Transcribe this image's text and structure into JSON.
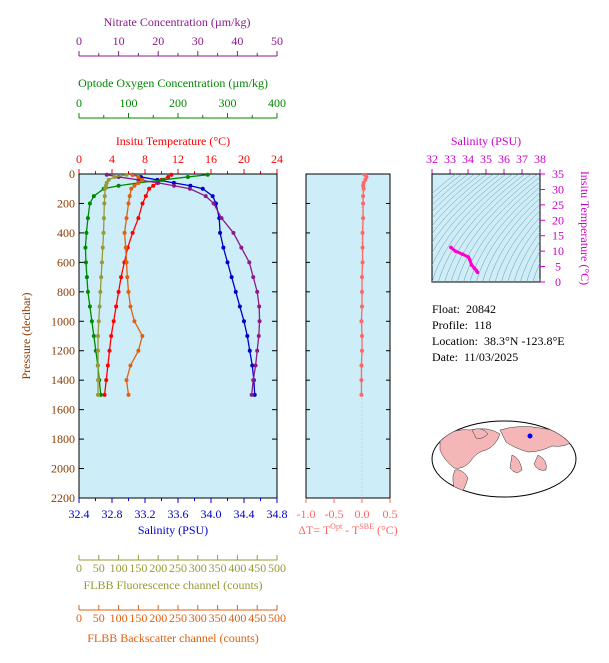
{
  "float_info": {
    "float_label": "Float:",
    "float_id": "20842",
    "profile_label": "Profile:",
    "profile": "118",
    "location_label": "Location:",
    "location": "38.3°N  -123.8°E",
    "date_label": "Date:",
    "date": "11/03/2025"
  },
  "colors": {
    "plot_bg": "#cdeef8",
    "temperature": "#ff0000",
    "salinity": "#0000cc",
    "oxygen": "#008800",
    "nitrate": "#8b1a8b",
    "fluorescence": "#999933",
    "backscatter": "#e06010",
    "delta_t": "#ff6666",
    "ts_axis": "#cc00cc",
    "ts_line": "#ff00cc"
  },
  "chart_data": [
    {
      "type": "line",
      "id": "main-profile",
      "ylabel": "Pressure (decibar)",
      "ylim": [
        2200,
        0
      ],
      "yticks": [
        0,
        200,
        400,
        600,
        800,
        1000,
        1200,
        1400,
        1600,
        1800,
        2000,
        2200
      ],
      "grid": false,
      "axes": {
        "nitrate": {
          "label": "Nitrate Concentration (µm/kg)",
          "lim": [
            0,
            50
          ],
          "ticks": [
            0,
            10,
            20,
            30,
            40,
            50
          ]
        },
        "oxygen": {
          "label": "Optode Oxygen Concentration (µm/kg)",
          "lim": [
            0,
            400
          ],
          "ticks": [
            0,
            100,
            200,
            300,
            400
          ]
        },
        "temperature": {
          "label": "Insitu Temperature (°C)",
          "lim": [
            0,
            24
          ],
          "ticks": [
            0,
            4,
            8,
            12,
            16,
            20,
            24
          ]
        },
        "salinity": {
          "label": "Salinity (PSU)",
          "lim": [
            32.4,
            34.8
          ],
          "ticks": [
            "32.4",
            "32.8",
            "33.2",
            "33.6",
            "34.0",
            "34.4",
            "34.8"
          ]
        },
        "fluorescence": {
          "label": "FLBB Fluorescence channel (counts)",
          "lim": [
            0,
            500
          ],
          "ticks": [
            0,
            50,
            100,
            150,
            200,
            250,
            300,
            350,
            400,
            450,
            500
          ]
        },
        "backscatter": {
          "label": "FLBB Backscatter channel (counts)",
          "lim": [
            0,
            500
          ],
          "ticks": [
            0,
            50,
            100,
            150,
            200,
            250,
            300,
            350,
            400,
            450,
            500
          ]
        }
      },
      "series": [
        {
          "key": "temperature",
          "pressure": [
            5,
            20,
            40,
            60,
            80,
            100,
            150,
            200,
            300,
            400,
            500,
            600,
            700,
            800,
            900,
            1000,
            1100,
            1200,
            1300,
            1400,
            1500
          ],
          "values": [
            11.2,
            10.8,
            10.0,
            9.5,
            9.0,
            8.5,
            8.1,
            7.7,
            7.2,
            6.5,
            5.9,
            5.5,
            5.1,
            4.8,
            4.5,
            4.2,
            3.9,
            3.7,
            3.5,
            3.3,
            3.1
          ]
        },
        {
          "key": "salinity",
          "pressure": [
            5,
            20,
            40,
            60,
            80,
            100,
            150,
            200,
            300,
            400,
            500,
            600,
            700,
            800,
            900,
            1000,
            1100,
            1200,
            1300,
            1400,
            1500
          ],
          "values": [
            33.05,
            33.15,
            33.35,
            33.55,
            33.75,
            33.9,
            34.02,
            34.06,
            34.1,
            34.11,
            34.15,
            34.2,
            34.25,
            34.3,
            34.35,
            34.4,
            34.44,
            34.47,
            34.5,
            34.52,
            34.53
          ]
        },
        {
          "key": "oxygen",
          "pressure": [
            5,
            20,
            40,
            60,
            80,
            100,
            150,
            200,
            300,
            400,
            500,
            600,
            700,
            800,
            900,
            1000,
            1100,
            1200,
            1300,
            1400,
            1500
          ],
          "values": [
            260,
            220,
            170,
            120,
            80,
            50,
            30,
            22,
            18,
            15,
            13,
            14,
            16,
            18,
            22,
            26,
            30,
            34,
            38,
            41,
            44
          ]
        },
        {
          "key": "nitrate",
          "pressure": [
            5,
            20,
            40,
            60,
            80,
            100,
            150,
            200,
            300,
            400,
            500,
            600,
            700,
            800,
            900,
            1000,
            1100,
            1200,
            1300,
            1400,
            1500
          ],
          "values": [
            7,
            10,
            15,
            20,
            24,
            28,
            32,
            34,
            36,
            39,
            41,
            43,
            44,
            45,
            45.5,
            45.6,
            45.4,
            45.0,
            44.6,
            44.0,
            43.6
          ]
        },
        {
          "key": "fluorescence",
          "pressure": [
            5,
            20,
            40,
            60,
            80,
            100,
            150,
            200,
            300,
            400,
            500,
            600,
            700,
            800,
            900,
            1000,
            1100,
            1200,
            1300,
            1400,
            1500
          ],
          "values": [
            120,
            90,
            75,
            70,
            68,
            66,
            65,
            64,
            63,
            62,
            60,
            58,
            56,
            54,
            52,
            50,
            48,
            48,
            48,
            48,
            48
          ]
        },
        {
          "key": "backscatter",
          "pressure": [
            5,
            20,
            40,
            60,
            80,
            100,
            150,
            200,
            300,
            400,
            500,
            600,
            700,
            800,
            900,
            1000,
            1100,
            1200,
            1300,
            1400,
            1500
          ],
          "values": [
            135,
            150,
            160,
            150,
            140,
            132,
            128,
            125,
            120,
            115,
            118,
            120,
            122,
            125,
            130,
            140,
            160,
            150,
            130,
            120,
            125
          ]
        }
      ]
    },
    {
      "type": "line",
      "id": "delta-t",
      "xlabel": "ΔT= T",
      "xlabel_sup1": "Opt",
      "xlabel_mid": " - T",
      "xlabel_sup2": "SBE",
      "xlabel_end": " (°C)",
      "xlim": [
        -1.0,
        0.5
      ],
      "xticks": [
        "-1.0",
        "-0.5",
        "0.0",
        "0.5"
      ],
      "ylim": [
        2200,
        0
      ],
      "pressure": [
        5,
        20,
        40,
        60,
        80,
        100,
        150,
        200,
        300,
        400,
        500,
        600,
        700,
        800,
        900,
        1000,
        1100,
        1200,
        1300,
        1400,
        1500
      ],
      "values": [
        0.05,
        0.08,
        0.06,
        0.03,
        0.02,
        0.03,
        0.02,
        0.02,
        0.02,
        0.01,
        0.01,
        0.01,
        0.0,
        0.0,
        0.0,
        -0.01,
        0.0,
        0.0,
        -0.01,
        -0.01,
        -0.01
      ]
    },
    {
      "type": "line",
      "id": "ts-diagram",
      "xlabel": "Salinity (PSU)",
      "ylabel": "Insitu Temperature (°C)",
      "xlim": [
        32,
        38
      ],
      "ylim": [
        0,
        35
      ],
      "xticks": [
        32,
        33,
        34,
        35,
        36,
        37,
        38
      ],
      "yticks": [
        0,
        5,
        10,
        15,
        20,
        25,
        30,
        35
      ],
      "salinity": [
        33.05,
        33.3,
        33.7,
        34.02,
        34.1,
        34.2,
        34.35,
        34.47,
        34.53
      ],
      "temperature": [
        11.2,
        10.0,
        9.0,
        8.1,
        7.2,
        5.5,
        4.5,
        3.7,
        3.1
      ]
    }
  ]
}
